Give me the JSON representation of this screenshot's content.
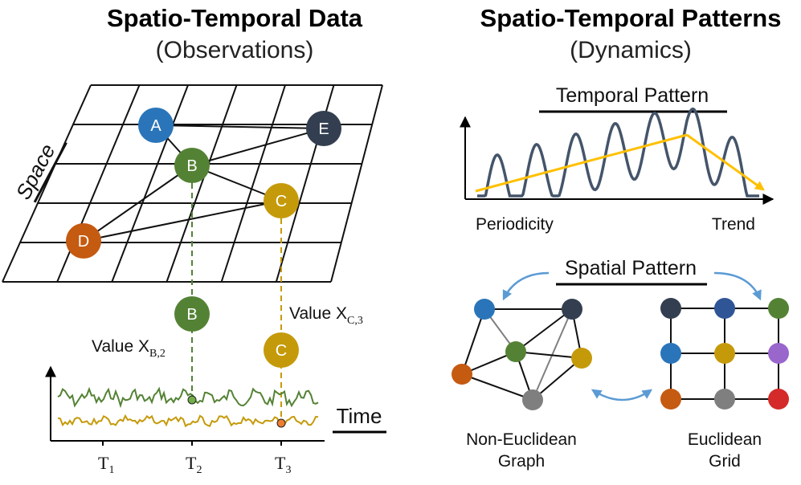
{
  "left": {
    "title": "Spatio-Temporal Data",
    "subtitle": "(Observations)",
    "space_label": "Space",
    "time_label": "Time",
    "nodes": {
      "a": "A",
      "b": "B",
      "c": "C",
      "d": "D",
      "e": "E"
    },
    "value_b": {
      "prefix": "Value X",
      "sub": "B,2"
    },
    "value_c": {
      "prefix": "Value X",
      "sub": "C,3"
    },
    "ticks": [
      {
        "main": "T",
        "sub": "1"
      },
      {
        "main": "T",
        "sub": "2"
      },
      {
        "main": "T",
        "sub": "3"
      }
    ]
  },
  "right": {
    "title": "Spatio-Temporal Patterns",
    "subtitle": "(Dynamics)",
    "temporal_heading": "Temporal Pattern",
    "periodicity_label": "Periodicity",
    "trend_label": "Trend",
    "spatial_heading": "Spatial Pattern",
    "graph_label_line1": "Non-Euclidean",
    "graph_label_line2": "Graph",
    "grid_label_line1": "Euclidean",
    "grid_label_line2": "Grid"
  },
  "colors": {
    "blue": "#2a75ba",
    "green": "#548235",
    "gold": "#c59a0a",
    "orange": "#c55a11",
    "navy": "#333f50",
    "gray": "#7f7f7f",
    "purple": "#9966cc",
    "red": "#d42a2a",
    "arrow_blue": "#5b9bd5",
    "trend_yellow": "#ffc000",
    "wave_gray": "#44546a"
  }
}
